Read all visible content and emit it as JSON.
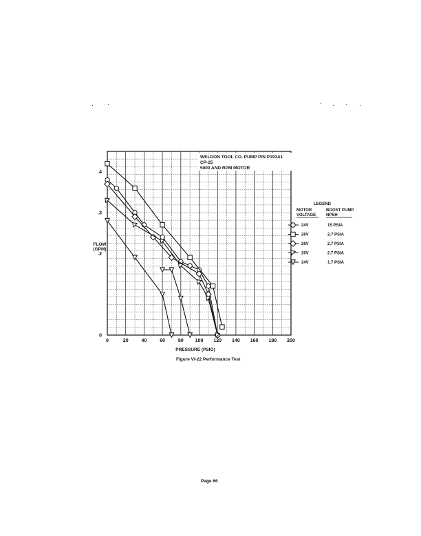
{
  "figure_caption": "Figure VI-22  Performance Test",
  "page_number": "Page 66",
  "chart_data": {
    "type": "line",
    "title_lines": [
      "WELDON TOOL CO. PUMP P/N P193A1",
      "CP-25",
      "5000 AND RPM MOTOR"
    ],
    "xlabel": "PRESSURE (PSIG)",
    "ylabel": "FLOW (GPM)",
    "ylabel_lines": [
      "FLOW",
      "(GPM)"
    ],
    "xlim": [
      0,
      200
    ],
    "ylim": [
      0,
      0.45
    ],
    "x_ticks": [
      0,
      20,
      40,
      60,
      80,
      100,
      120,
      140,
      160,
      180,
      200
    ],
    "x_tick_labels": [
      "0",
      "20",
      "40",
      "60",
      "80",
      "100",
      "120",
      "140",
      "160",
      "180",
      "200"
    ],
    "y_ticks": [
      0,
      0.2,
      0.3,
      0.4
    ],
    "y_tick_labels": [
      "0",
      ".2",
      ".3",
      ".4"
    ],
    "grid": true,
    "legend": {
      "title": "LEGEND",
      "placement": "right",
      "col1_header": [
        "MOTOR",
        "VOLTAGE"
      ],
      "col2_header": [
        "BOOST PUMP",
        "NPSH"
      ]
    },
    "series": [
      {
        "voltage": "24V",
        "npsh": "15 PSIA",
        "marker": "circle",
        "x": [
          0,
          10,
          30,
          40,
          60,
          80,
          90,
          100,
          110,
          120
        ],
        "y": [
          0.38,
          0.36,
          0.3,
          0.27,
          0.24,
          0.18,
          0.17,
          0.16,
          0.12,
          0.0
        ]
      },
      {
        "voltage": "26V",
        "npsh": "2.7 PSIA",
        "marker": "square",
        "x": [
          0,
          30,
          60,
          90,
          115,
          125
        ],
        "y": [
          0.42,
          0.36,
          0.27,
          0.19,
          0.12,
          0.02
        ]
      },
      {
        "voltage": "26V",
        "npsh": "2.7 PSIA",
        "marker": "diamond",
        "x": [
          0,
          30,
          50,
          70,
          100,
          110,
          120
        ],
        "y": [
          0.37,
          0.29,
          0.24,
          0.19,
          0.15,
          0.1,
          0.0
        ]
      },
      {
        "voltage": "20V",
        "npsh": "2.7 PSIA",
        "marker": "flag",
        "x": [
          0,
          30,
          60,
          80,
          100,
          110,
          120
        ],
        "y": [
          0.33,
          0.27,
          0.23,
          0.17,
          0.13,
          0.09,
          0.0
        ]
      },
      {
        "voltage": "24V",
        "npsh": "1.7 PSIA",
        "marker": "triangle-down",
        "x": [
          0,
          30,
          60,
          70
        ],
        "y": [
          0.28,
          0.19,
          0.1,
          0.0
        ]
      },
      {
        "voltage": "",
        "npsh": "",
        "marker": "triangle-down",
        "x": [
          60,
          70,
          80,
          90
        ],
        "y": [
          0.16,
          0.16,
          0.09,
          0.0
        ]
      }
    ]
  }
}
